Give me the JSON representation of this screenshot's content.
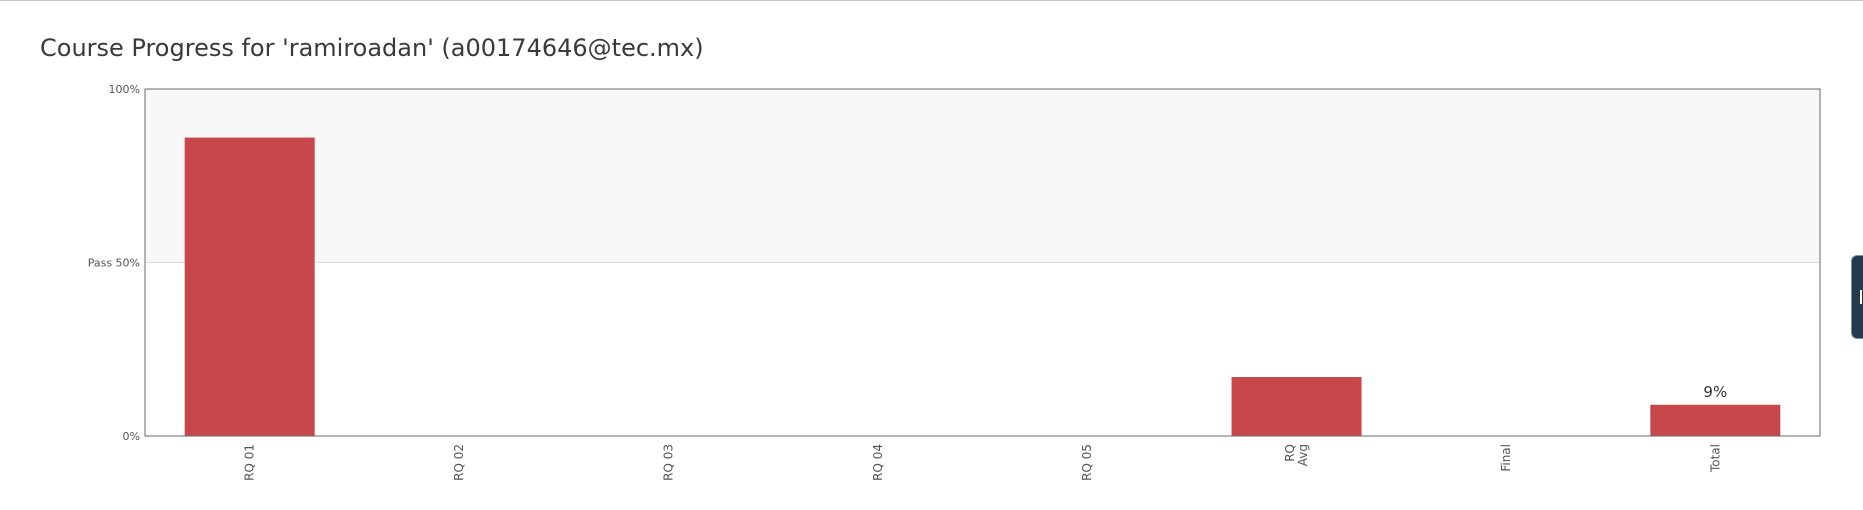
{
  "page": {
    "title": "Course Progress for 'ramiroadan' (a00174646@tec.mx)"
  },
  "chart_data": {
    "type": "bar",
    "categories": [
      [
        "RQ 01"
      ],
      [
        "RQ 02"
      ],
      [
        "RQ 03"
      ],
      [
        "RQ 04"
      ],
      [
        "RQ 05"
      ],
      [
        "RQ",
        "Avg"
      ],
      [
        "Final"
      ],
      [
        "Total"
      ]
    ],
    "values": [
      86,
      0,
      0,
      0,
      0,
      17,
      0,
      9
    ],
    "data_labels": [
      null,
      null,
      null,
      null,
      null,
      null,
      null,
      "9%"
    ],
    "ylim": [
      0,
      100
    ],
    "y_ticks": [
      {
        "value": 0,
        "label": "0%"
      },
      {
        "value": 50,
        "label": "Pass 50%"
      },
      {
        "value": 100,
        "label": "100%"
      }
    ],
    "pass_threshold": 50,
    "colors": {
      "bar": "#c7474b",
      "pass_band": "#f8f8f9",
      "axis": "#6a6a6a",
      "pass_line": "#dcdcdc",
      "tick_text": "#555555"
    }
  },
  "side_tab": {
    "icon": "side-panel-toggle-icon"
  }
}
